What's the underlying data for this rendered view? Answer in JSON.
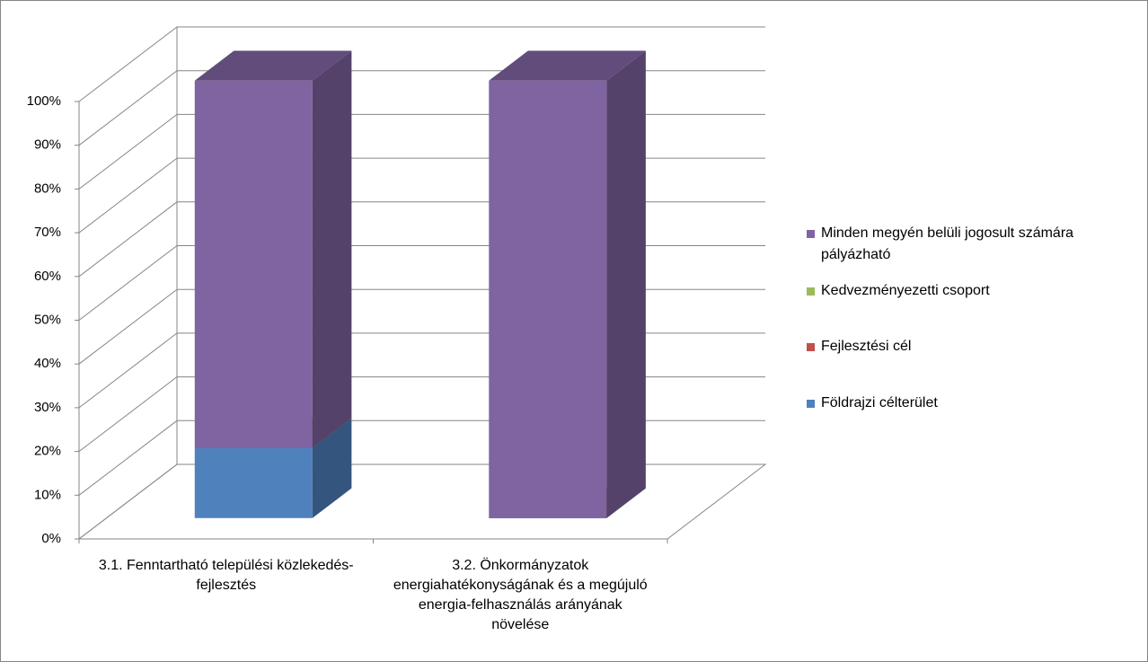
{
  "chart_data": {
    "type": "bar3d_stacked",
    "categories": [
      "3.1. Fenntartható települési közlekedés-fejlesztés",
      "3.2. Önkormányzatok energiahatékonyságának és a megújuló energia-felhasználás arányának növelése"
    ],
    "series": [
      {
        "name": "Földrajzi célterület",
        "color": "#4f81bd",
        "values": [
          16,
          0
        ]
      },
      {
        "name": "Fejlesztési cél",
        "color": "#c0504d",
        "values": [
          0,
          0
        ]
      },
      {
        "name": "Kedvezményezetti csoport",
        "color": "#9bbb59",
        "values": [
          0,
          0
        ]
      },
      {
        "name": "Minden megyén belüli jogosult számára pályázható",
        "color": "#8064a2",
        "values": [
          84,
          100
        ]
      }
    ],
    "ylim": [
      0,
      100
    ],
    "yticks": [
      {
        "value": 0,
        "label": "0%"
      },
      {
        "value": 10,
        "label": "10%"
      },
      {
        "value": 20,
        "label": "20%"
      },
      {
        "value": 30,
        "label": "30%"
      },
      {
        "value": 40,
        "label": "40%"
      },
      {
        "value": 50,
        "label": "50%"
      },
      {
        "value": 60,
        "label": "60%"
      },
      {
        "value": 70,
        "label": "70%"
      },
      {
        "value": 80,
        "label": "80%"
      },
      {
        "value": 90,
        "label": "90%"
      },
      {
        "value": 100,
        "label": "100%"
      }
    ],
    "grid": true,
    "legend": "right"
  }
}
